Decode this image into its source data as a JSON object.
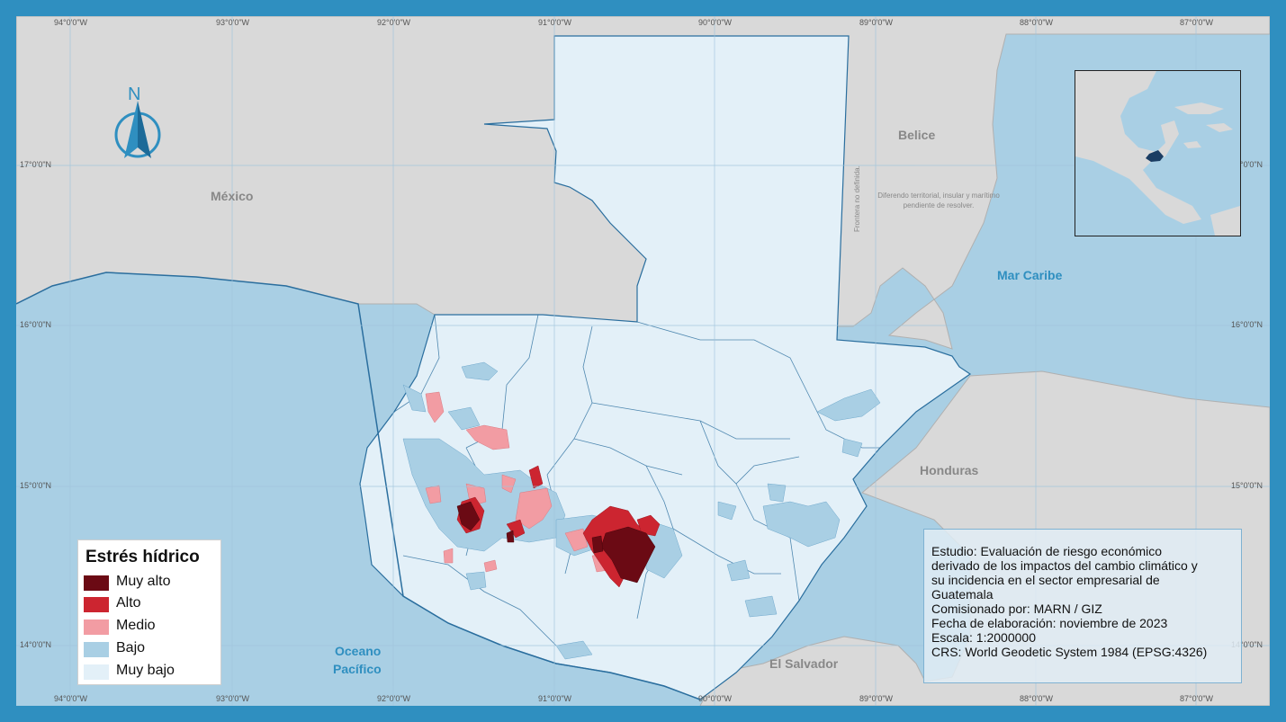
{
  "map": {
    "grid_labels_top": [
      "94°0'0\"W",
      "93°0'0\"W",
      "92°0'0\"W",
      "91°0'0\"W",
      "90°0'0\"W",
      "89°0'0\"W",
      "88°0'0\"W",
      "87°0'0\"W"
    ],
    "grid_labels_bottom": [
      "94°0'0\"W",
      "93°0'0\"W",
      "92°0'0\"W",
      "91°0'0\"W",
      "90°0'0\"W",
      "89°0'0\"W",
      "88°0'0\"W",
      "87°0'0\"W"
    ],
    "grid_labels_left": [
      "17°0'0\"N",
      "16°0'0\"N",
      "15°0'0\"N",
      "14°0'0\"N"
    ],
    "grid_labels_right": [
      "17°0'0\"N",
      "16°0'0\"N",
      "15°0'0\"N",
      "14°0'0\"N"
    ],
    "countries": {
      "mexico": "México",
      "belize": "Belice",
      "honduras": "Honduras",
      "el_salvador": "El Salvador"
    },
    "seas": {
      "caribbean": "Mar Caribe",
      "pacific_line1": "Oceano",
      "pacific_line2": "Pacífico"
    },
    "dispute_note": "Diferendo territorial, insular y marítimo pendiente de resolver.",
    "border_note": "Frontera no definida.",
    "north_label": "N"
  },
  "legend": {
    "title": "Estrés hídrico",
    "items": [
      {
        "label": "Muy alto",
        "color": "#6b0a14"
      },
      {
        "label": "Alto",
        "color": "#cc2530"
      },
      {
        "label": "Medio",
        "color": "#f29ca3"
      },
      {
        "label": "Bajo",
        "color": "#a9cfe4"
      },
      {
        "label": "Muy bajo",
        "color": "#e3f0f8"
      }
    ]
  },
  "info": {
    "line1": "Estudio: Evaluación de riesgo económico",
    "line2": "derivado de los impactos del cambio climático y",
    "line3": "su incidencia en el sector empresarial de",
    "line4": "Guatemala",
    "line5": "Comisionado por: MARN / GIZ",
    "line6": "Fecha de elaboración: noviembre de 2023",
    "line7": "Escala: 1:2000000",
    "line8": "CRS: World Geodetic System 1984 (EPSG:4326)"
  },
  "colors": {
    "frame": "#2f8fc0",
    "water": "#a9cfe4",
    "land": "#d9d9d9",
    "guatemala_base": "#e3f0f8",
    "border": "#2a6e9e"
  }
}
